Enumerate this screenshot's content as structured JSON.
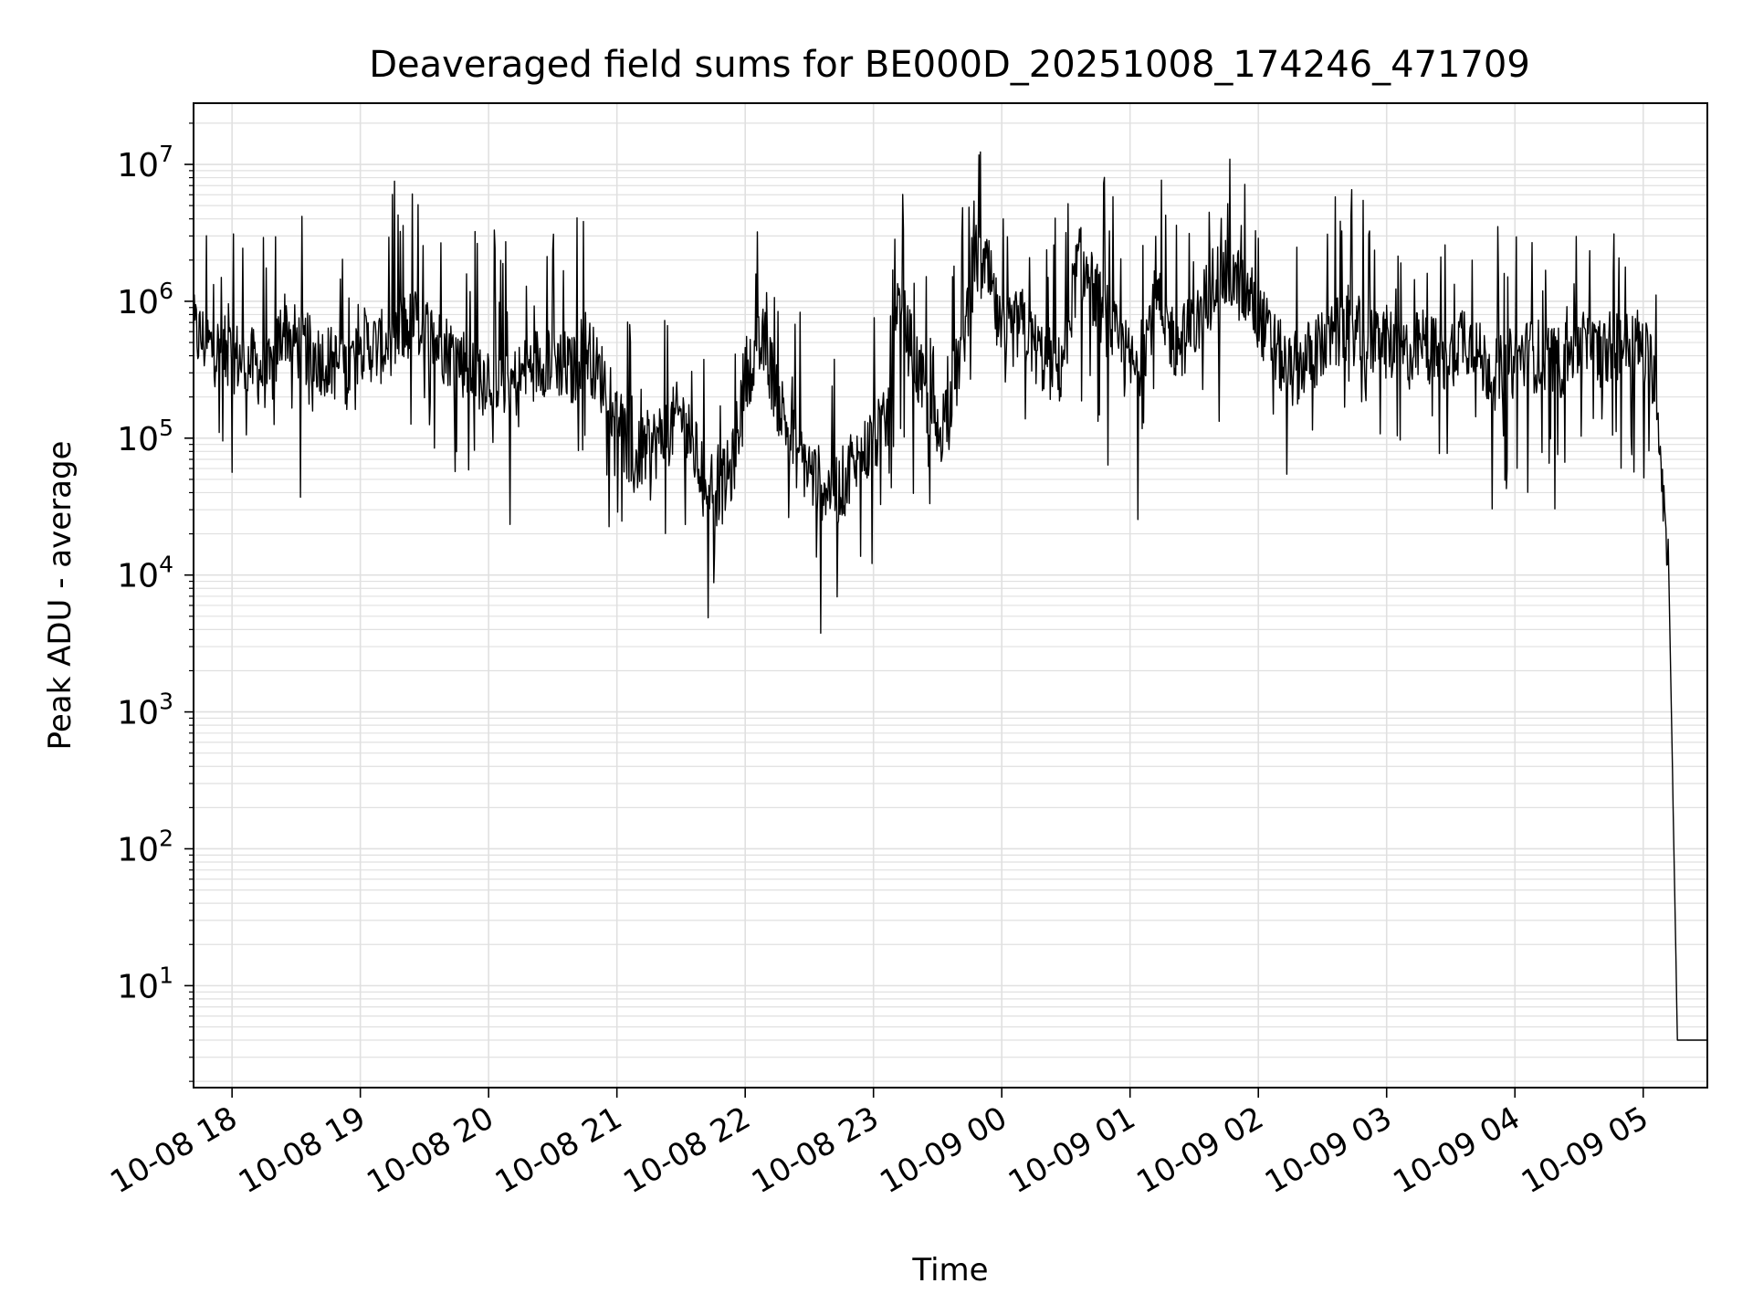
{
  "chart_data": {
    "type": "line",
    "title": "Deaveraged field sums for BE000D_20251008_174246_471709",
    "xlabel": "Time",
    "ylabel": "Peak ADU - average",
    "yscale": "log",
    "ylim": [
      1.8,
      28000000
    ],
    "xlim": [
      "2025-10-08 17:42",
      "2025-10-09 05:30"
    ],
    "grid": true,
    "line_color": "#000000",
    "grid_color": "#e0e0e0",
    "x_tick_labels": [
      "10-08 18",
      "10-08 19",
      "10-08 20",
      "10-08 21",
      "10-08 22",
      "10-08 23",
      "10-09 00",
      "10-09 01",
      "10-09 02",
      "10-09 03",
      "10-09 04",
      "10-09 05"
    ],
    "y_tick_labels": [
      {
        "base": "10",
        "exp": "1"
      },
      {
        "base": "10",
        "exp": "2"
      },
      {
        "base": "10",
        "exp": "3"
      },
      {
        "base": "10",
        "exp": "4"
      },
      {
        "base": "10",
        "exp": "5"
      },
      {
        "base": "10",
        "exp": "6"
      },
      {
        "base": "10",
        "exp": "7"
      }
    ],
    "series": [
      {
        "x": [
          "2025-10-08 17:42",
          "2025-10-08 17:51",
          "2025-10-08 18:00",
          "2025-10-08 18:09",
          "2025-10-08 18:18",
          "2025-10-08 18:24",
          "2025-10-08 18:30",
          "2025-10-08 18:39",
          "2025-10-08 18:48",
          "2025-10-08 18:54",
          "2025-10-08 19:00",
          "2025-10-08 19:09",
          "2025-10-08 19:18",
          "2025-10-08 19:27",
          "2025-10-08 19:36",
          "2025-10-08 19:45",
          "2025-10-08 19:54",
          "2025-10-08 20:03",
          "2025-10-08 20:12",
          "2025-10-08 20:21",
          "2025-10-08 20:30",
          "2025-10-08 20:39",
          "2025-10-08 20:45",
          "2025-10-08 20:51",
          "2025-10-08 21:00",
          "2025-10-08 21:06",
          "2025-10-08 21:12",
          "2025-10-08 21:21",
          "2025-10-08 21:30",
          "2025-10-08 21:39",
          "2025-10-08 21:48",
          "2025-10-08 21:54",
          "2025-10-08 22:00",
          "2025-10-08 22:09",
          "2025-10-08 22:15",
          "2025-10-08 22:24",
          "2025-10-08 22:33",
          "2025-10-08 22:42",
          "2025-10-08 22:51",
          "2025-10-08 23:00",
          "2025-10-08 23:06",
          "2025-10-08 23:12",
          "2025-10-08 23:21",
          "2025-10-08 23:30",
          "2025-10-08 23:39",
          "2025-10-08 23:48",
          "2025-10-08 23:54",
          "2025-10-09 00:00",
          "2025-10-09 00:09",
          "2025-10-09 00:18",
          "2025-10-09 00:27",
          "2025-10-09 00:36",
          "2025-10-09 00:45",
          "2025-10-09 00:54",
          "2025-10-09 01:03",
          "2025-10-09 01:12",
          "2025-10-09 01:21",
          "2025-10-09 01:30",
          "2025-10-09 01:39",
          "2025-10-09 01:48",
          "2025-10-09 01:57",
          "2025-10-09 02:06",
          "2025-10-09 02:15",
          "2025-10-09 02:24",
          "2025-10-09 02:33",
          "2025-10-09 02:42",
          "2025-10-09 02:51",
          "2025-10-09 03:00",
          "2025-10-09 03:09",
          "2025-10-09 03:18",
          "2025-10-09 03:27",
          "2025-10-09 03:36",
          "2025-10-09 03:45",
          "2025-10-09 03:54",
          "2025-10-09 04:03",
          "2025-10-09 04:12",
          "2025-10-09 04:21",
          "2025-10-09 04:30",
          "2025-10-09 04:39",
          "2025-10-09 04:48",
          "2025-10-09 04:57",
          "2025-10-09 05:06",
          "2025-10-09 05:09",
          "2025-10-09 05:12",
          "2025-10-09 05:16",
          "2025-10-09 05:20",
          "2025-10-09 05:30"
        ],
        "values": [
          600000,
          450000,
          400000,
          350000,
          280000,
          700000,
          500000,
          400000,
          350000,
          300000,
          500000,
          450000,
          600000,
          700000,
          500000,
          400000,
          300000,
          300000,
          250000,
          350000,
          400000,
          300000,
          500000,
          300000,
          200000,
          60000,
          80000,
          100000,
          150000,
          60000,
          40000,
          60000,
          300000,
          500000,
          200000,
          80000,
          50000,
          40000,
          60000,
          100000,
          120000,
          900000,
          300000,
          100000,
          300000,
          2000000,
          1500000,
          500000,
          700000,
          400000,
          300000,
          2000000,
          1000000,
          500000,
          300000,
          1000000,
          500000,
          600000,
          1500000,
          1500000,
          1000000,
          500000,
          300000,
          400000,
          500000,
          700000,
          500000,
          500000,
          400000,
          500000,
          350000,
          600000,
          350000,
          300000,
          400000,
          400000,
          350000,
          500000,
          400000,
          500000,
          500000,
          300000,
          50000,
          10000,
          4,
          4,
          4
        ]
      }
    ]
  }
}
